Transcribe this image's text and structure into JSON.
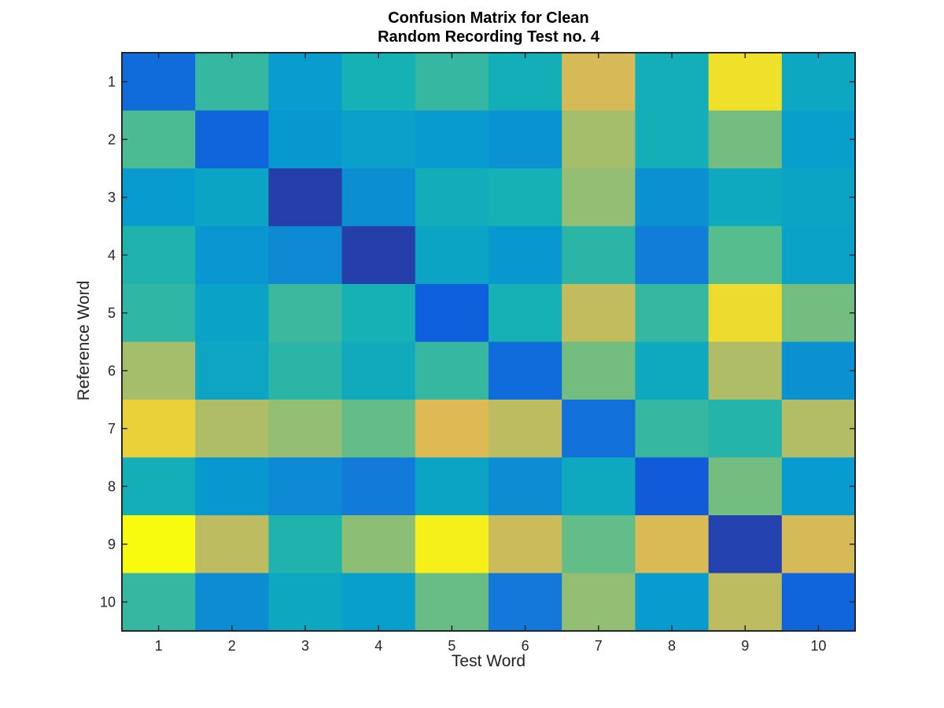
{
  "chart_data": {
    "type": "heatmap",
    "title": [
      "Confusion Matrix for Clean",
      "Random Recording Test no. 4"
    ],
    "xlabel": "Test Word",
    "ylabel": "Reference Word",
    "x_categories": [
      "1",
      "2",
      "3",
      "4",
      "5",
      "6",
      "7",
      "8",
      "9",
      "10"
    ],
    "y_categories": [
      "1",
      "2",
      "3",
      "4",
      "5",
      "6",
      "7",
      "8",
      "9",
      "10"
    ],
    "colormap": "parula",
    "color_range": [
      0,
      1
    ],
    "values": [
      [
        0.18,
        0.56,
        0.38,
        0.5,
        0.56,
        0.48,
        0.85,
        0.48,
        0.95,
        0.44
      ],
      [
        0.6,
        0.16,
        0.36,
        0.4,
        0.37,
        0.34,
        0.75,
        0.48,
        0.67,
        0.39
      ],
      [
        0.37,
        0.42,
        0.05,
        0.32,
        0.47,
        0.5,
        0.72,
        0.33,
        0.45,
        0.42
      ],
      [
        0.52,
        0.35,
        0.3,
        0.05,
        0.42,
        0.36,
        0.54,
        0.25,
        0.62,
        0.41
      ],
      [
        0.55,
        0.41,
        0.57,
        0.5,
        0.14,
        0.5,
        0.81,
        0.56,
        0.94,
        0.67
      ],
      [
        0.75,
        0.43,
        0.54,
        0.46,
        0.56,
        0.18,
        0.67,
        0.45,
        0.77,
        0.33
      ],
      [
        0.92,
        0.77,
        0.72,
        0.64,
        0.87,
        0.8,
        0.2,
        0.56,
        0.53,
        0.78
      ],
      [
        0.48,
        0.36,
        0.3,
        0.24,
        0.42,
        0.31,
        0.45,
        0.12,
        0.67,
        0.37
      ],
      [
        1.0,
        0.8,
        0.52,
        0.71,
        0.98,
        0.83,
        0.64,
        0.86,
        0.06,
        0.85
      ],
      [
        0.56,
        0.31,
        0.44,
        0.39,
        0.65,
        0.23,
        0.72,
        0.37,
        0.8,
        0.16
      ]
    ]
  }
}
